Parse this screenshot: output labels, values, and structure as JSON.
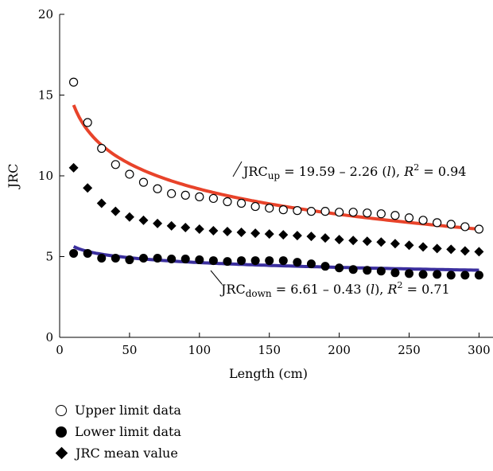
{
  "chart_data": {
    "type": "scatter",
    "xlabel": "Length (cm)",
    "ylabel": "JRC",
    "xlim": [
      0,
      310
    ],
    "ylim": [
      0,
      20
    ],
    "xticks": [
      0,
      50,
      100,
      150,
      200,
      250,
      300
    ],
    "yticks": [
      0,
      5,
      10,
      15,
      20
    ],
    "x": [
      10,
      20,
      30,
      40,
      50,
      60,
      70,
      80,
      90,
      100,
      110,
      120,
      130,
      140,
      150,
      160,
      170,
      180,
      190,
      200,
      210,
      220,
      230,
      240,
      250,
      260,
      270,
      280,
      290,
      300
    ],
    "series": [
      {
        "name": "Upper limit data",
        "marker": "open-circle",
        "values": [
          15.8,
          13.3,
          11.7,
          10.7,
          10.1,
          9.6,
          9.2,
          8.9,
          8.8,
          8.7,
          8.6,
          8.4,
          8.3,
          8.1,
          8.0,
          7.9,
          7.85,
          7.8,
          7.8,
          7.75,
          7.75,
          7.7,
          7.65,
          7.55,
          7.4,
          7.25,
          7.1,
          7.0,
          6.85,
          6.7
        ]
      },
      {
        "name": "Lower limit data",
        "marker": "filled-circle",
        "values": [
          5.2,
          5.2,
          4.9,
          4.9,
          4.8,
          4.9,
          4.9,
          4.85,
          4.85,
          4.8,
          4.75,
          4.7,
          4.75,
          4.75,
          4.75,
          4.75,
          4.65,
          4.55,
          4.4,
          4.3,
          4.2,
          4.15,
          4.1,
          4.0,
          3.95,
          3.9,
          3.9,
          3.85,
          3.85,
          3.85
        ]
      },
      {
        "name": "JRC mean value",
        "marker": "diamond",
        "values": [
          10.5,
          9.25,
          8.3,
          7.8,
          7.45,
          7.25,
          7.05,
          6.9,
          6.8,
          6.7,
          6.6,
          6.55,
          6.5,
          6.45,
          6.4,
          6.35,
          6.3,
          6.25,
          6.15,
          6.05,
          6.0,
          5.95,
          5.9,
          5.8,
          5.7,
          5.6,
          5.5,
          5.45,
          5.35,
          5.3
        ]
      }
    ],
    "fits": [
      {
        "color": "#e8432a",
        "coef_a": 19.59,
        "coef_b": 2.26,
        "x_range": [
          10,
          300
        ],
        "label_main": "JRC",
        "label_sub": "up",
        "label_rest": " = 19.59 – 2.26 (",
        "label_var": "l",
        "label_close": "), ",
        "label_r": "R",
        "label_sup": "2",
        "label_eq": " = 0.94"
      },
      {
        "color": "#3b2f9e",
        "coef_a": 6.61,
        "coef_b": 0.43,
        "x_range": [
          10,
          300
        ],
        "label_main": "JRC",
        "label_sub": "down",
        "label_rest": " = 6.61 – 0.43 (",
        "label_var": "l",
        "label_close": "), ",
        "label_r": "R",
        "label_sup": "2",
        "label_eq": " = 0.71"
      }
    ],
    "legend": {
      "placement": "bottom-left",
      "items": [
        "Upper limit data",
        "Lower limit data",
        "JRC mean value"
      ]
    }
  }
}
